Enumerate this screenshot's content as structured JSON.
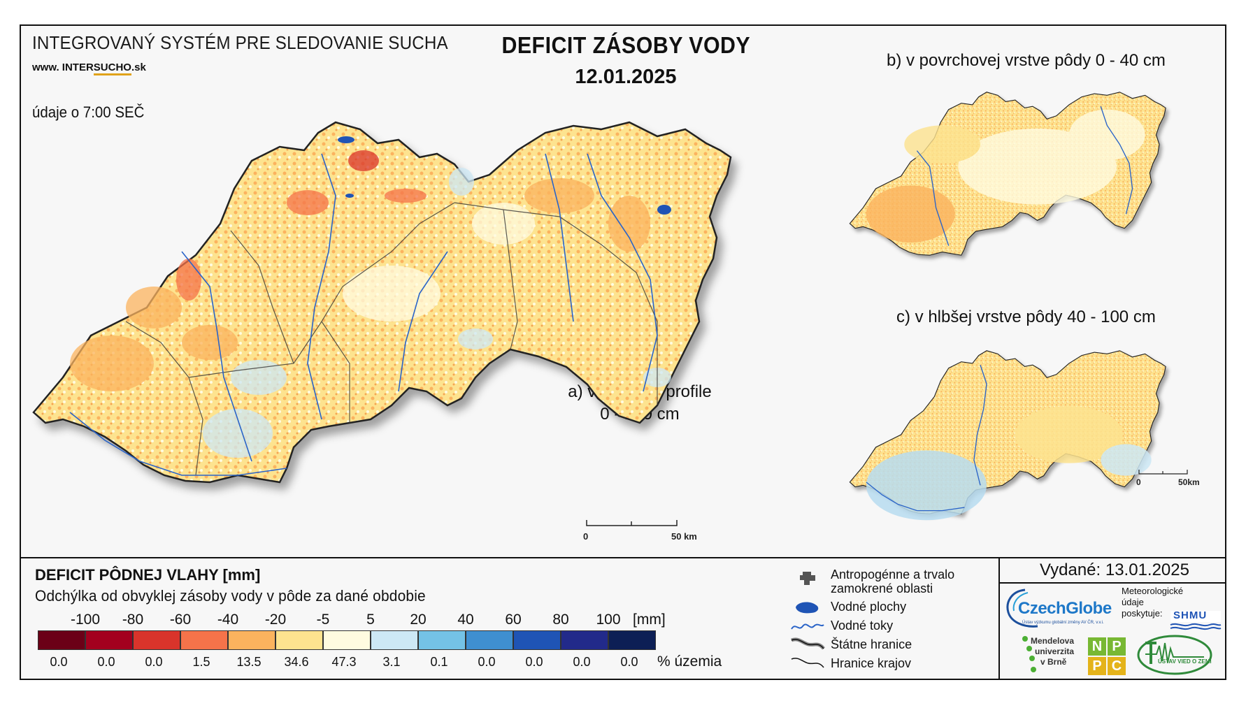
{
  "header": {
    "system_title": "INTEGROVANÝ SYSTÉM PRE SLEDOVANIE SUCHA",
    "www_prefix": "www. INTER",
    "www_highlight": "SUCHO",
    "www_suffix": ".sk",
    "data_time": "údaje o 7:00 SEČ",
    "main_title": "DEFICIT ZÁSOBY VODY",
    "main_date": "12.01.2025"
  },
  "maps": {
    "a_line1": "a) v pôdnom profile",
    "a_line2": "0 - 100 cm",
    "b_label": "b) v povrchovej vrstve pôdy 0 - 40 cm",
    "c_label": "c) v hlbšej vrstve pôdy 40 - 100 cm",
    "scale_main_left": "0",
    "scale_main_right": "50 km",
    "scale_small_left": "0",
    "scale_small_right": "50km"
  },
  "legend": {
    "title": "DEFICIT PÔDNEJ VLAHY [mm]",
    "subtitle": "Odchýlka od obvyklej zásoby vody v pôde za dané obdobie",
    "ticks": [
      "-100",
      "-80",
      "-60",
      "-40",
      "-20",
      "-5",
      "5",
      "20",
      "40",
      "60",
      "80",
      "100"
    ],
    "unit": "[mm]",
    "colors": [
      "#6b0017",
      "#a3001e",
      "#d9342b",
      "#f5734a",
      "#fbb35e",
      "#fde38f",
      "#fffbe0",
      "#cde8f5",
      "#74c2e6",
      "#3f8fd0",
      "#1f54b5",
      "#222a8a",
      "#0d1f55"
    ],
    "percentages": [
      "0.0",
      "0.0",
      "0.0",
      "1.5",
      "13.5",
      "34.6",
      "47.3",
      "3.1",
      "0.1",
      "0.0",
      "0.0",
      "0.0",
      "0.0"
    ],
    "percent_unit": "% územia"
  },
  "map_legend": {
    "anthropogenic_line1": "Antropogénne a trvalo",
    "anthropogenic_line2": "zamokrené oblasti",
    "water_bodies": "Vodné plochy",
    "rivers": "Vodné toky",
    "state_border": "Štátne hranice",
    "region_border": "Hranice krajov"
  },
  "footer": {
    "issued": "Vydané: 13.01.2025",
    "czechglobe": "CzechGlobe",
    "czechglobe_sub": "Ústav výzkumu globální změny AV ČR, v.v.i.",
    "met_line1": "Meteorologické",
    "met_line2": "údaje",
    "met_line3": "poskytuje:",
    "shmu": "SHMU",
    "mendel_line1": "Mendelova",
    "mendel_line2": "univerzita",
    "mendel_line3": "v Brně",
    "nppc_n": "N",
    "nppc_p1": "P",
    "nppc_p2": "P",
    "nppc_c": "C",
    "uvz": "ÚSTAV VIED O ZEMI"
  }
}
